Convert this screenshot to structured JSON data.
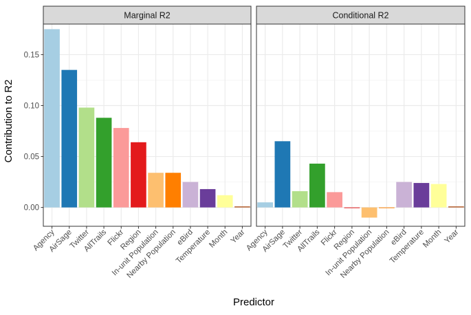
{
  "chart_data": {
    "type": "bar",
    "xlabel": "Predictor",
    "ylabel": "Contribution to R2",
    "ylim": [
      -0.0185,
      0.18
    ],
    "yticks": [
      0.0,
      0.05,
      0.1,
      0.15
    ],
    "ytick_labels": [
      "0.00",
      "0.05",
      "0.10",
      "0.15"
    ],
    "grid": true,
    "legend": "none",
    "categories": [
      "Agency",
      "AirSage",
      "Twitter",
      "AllTrails",
      "Flickr",
      "Region",
      "In-unit Population",
      "Nearby Population",
      "eBird",
      "Temperature",
      "Month",
      "Year"
    ],
    "colors": [
      "#a6cee3",
      "#1f78b4",
      "#b2df8a",
      "#33a02c",
      "#fb9a99",
      "#e31a1c",
      "#fdbf6f",
      "#ff7f00",
      "#cab2d6",
      "#6a3d9a",
      "#ffff99",
      "#b15928"
    ],
    "panels": [
      {
        "title": "Marginal R2",
        "values": [
          0.175,
          0.135,
          0.098,
          0.088,
          0.078,
          0.064,
          0.034,
          0.034,
          0.025,
          0.018,
          0.012,
          0.001
        ]
      },
      {
        "title": "Conditional R2",
        "values": [
          0.005,
          0.065,
          0.016,
          0.043,
          0.015,
          0.0,
          -0.01,
          -0.0005,
          0.025,
          0.024,
          0.023,
          0.001
        ]
      }
    ]
  }
}
